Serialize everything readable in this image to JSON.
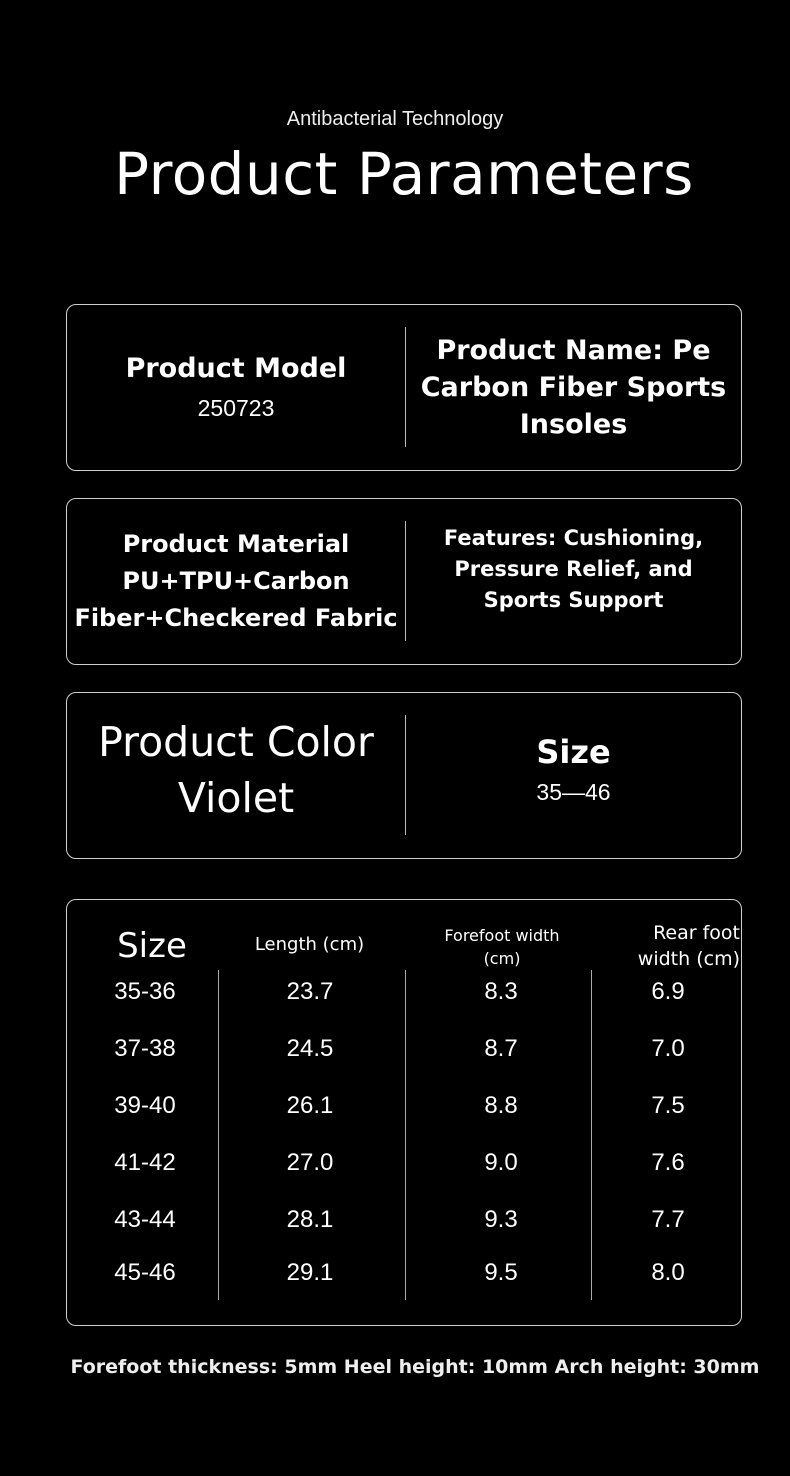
{
  "header": {
    "subtitle": "Antibacterial Technology",
    "title": "Product Parameters"
  },
  "box1": {
    "left_label": "Product Model",
    "left_value": "250723",
    "right_lines": [
      "Product Name: Pe",
      "Carbon Fiber Sports",
      "Insoles"
    ]
  },
  "box2": {
    "left_lines": [
      "Product Material",
      "PU+TPU+Carbon",
      "Fiber+Checkered Fabric"
    ],
    "right_lines": [
      "Features: Cushioning,",
      "Pressure Relief, and",
      "Sports Support"
    ]
  },
  "box3": {
    "left_label": "Product Color",
    "left_value": "Violet",
    "right_label": "Size",
    "right_value": "35—46"
  },
  "size_table": {
    "headers": [
      "Size",
      "Length (cm)",
      "Forefoot width (cm)",
      "Rear foot width (cm)"
    ],
    "rows": [
      [
        "35-36",
        "23.7",
        "8.3",
        "6.9"
      ],
      [
        "37-38",
        "24.5",
        "8.7",
        "7.0"
      ],
      [
        "39-40",
        "26.1",
        "8.8",
        "7.5"
      ],
      [
        "41-42",
        "27.0",
        "9.0",
        "7.6"
      ],
      [
        "43-44",
        "28.1",
        "9.3",
        "7.7"
      ],
      [
        "45-46",
        "29.1",
        "9.5",
        "8.0"
      ]
    ]
  },
  "footer": "Forefoot thickness: 5mm Heel height: 10mm Arch height: 30mm"
}
